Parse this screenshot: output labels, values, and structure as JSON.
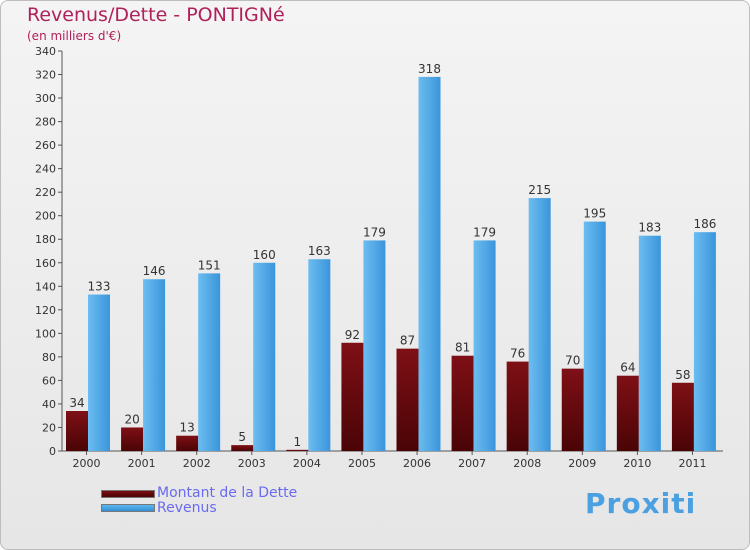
{
  "chart_data": {
    "type": "bar",
    "title": "Revenus/Dette - PONTIGNé",
    "subtitle": "(en milliers d'€)",
    "categories": [
      "2000",
      "2001",
      "2002",
      "2003",
      "2004",
      "2005",
      "2006",
      "2007",
      "2008",
      "2009",
      "2010",
      "2011"
    ],
    "series": [
      {
        "name": "Montant de la Dette",
        "color": "#6b0c10",
        "values": [
          34,
          20,
          13,
          5,
          1,
          92,
          87,
          81,
          76,
          70,
          64,
          58
        ]
      },
      {
        "name": "Revenus",
        "color": "#4aa6e8",
        "values": [
          133,
          146,
          151,
          160,
          163,
          179,
          318,
          179,
          215,
          195,
          183,
          186
        ]
      }
    ],
    "ylim": [
      0,
      340
    ],
    "yticks": [
      0,
      20,
      40,
      60,
      80,
      100,
      120,
      140,
      160,
      180,
      200,
      220,
      240,
      260,
      280,
      300,
      320,
      340
    ],
    "grid": false,
    "legend": "bottom-left"
  },
  "logo": {
    "text": "Proxiti"
  }
}
